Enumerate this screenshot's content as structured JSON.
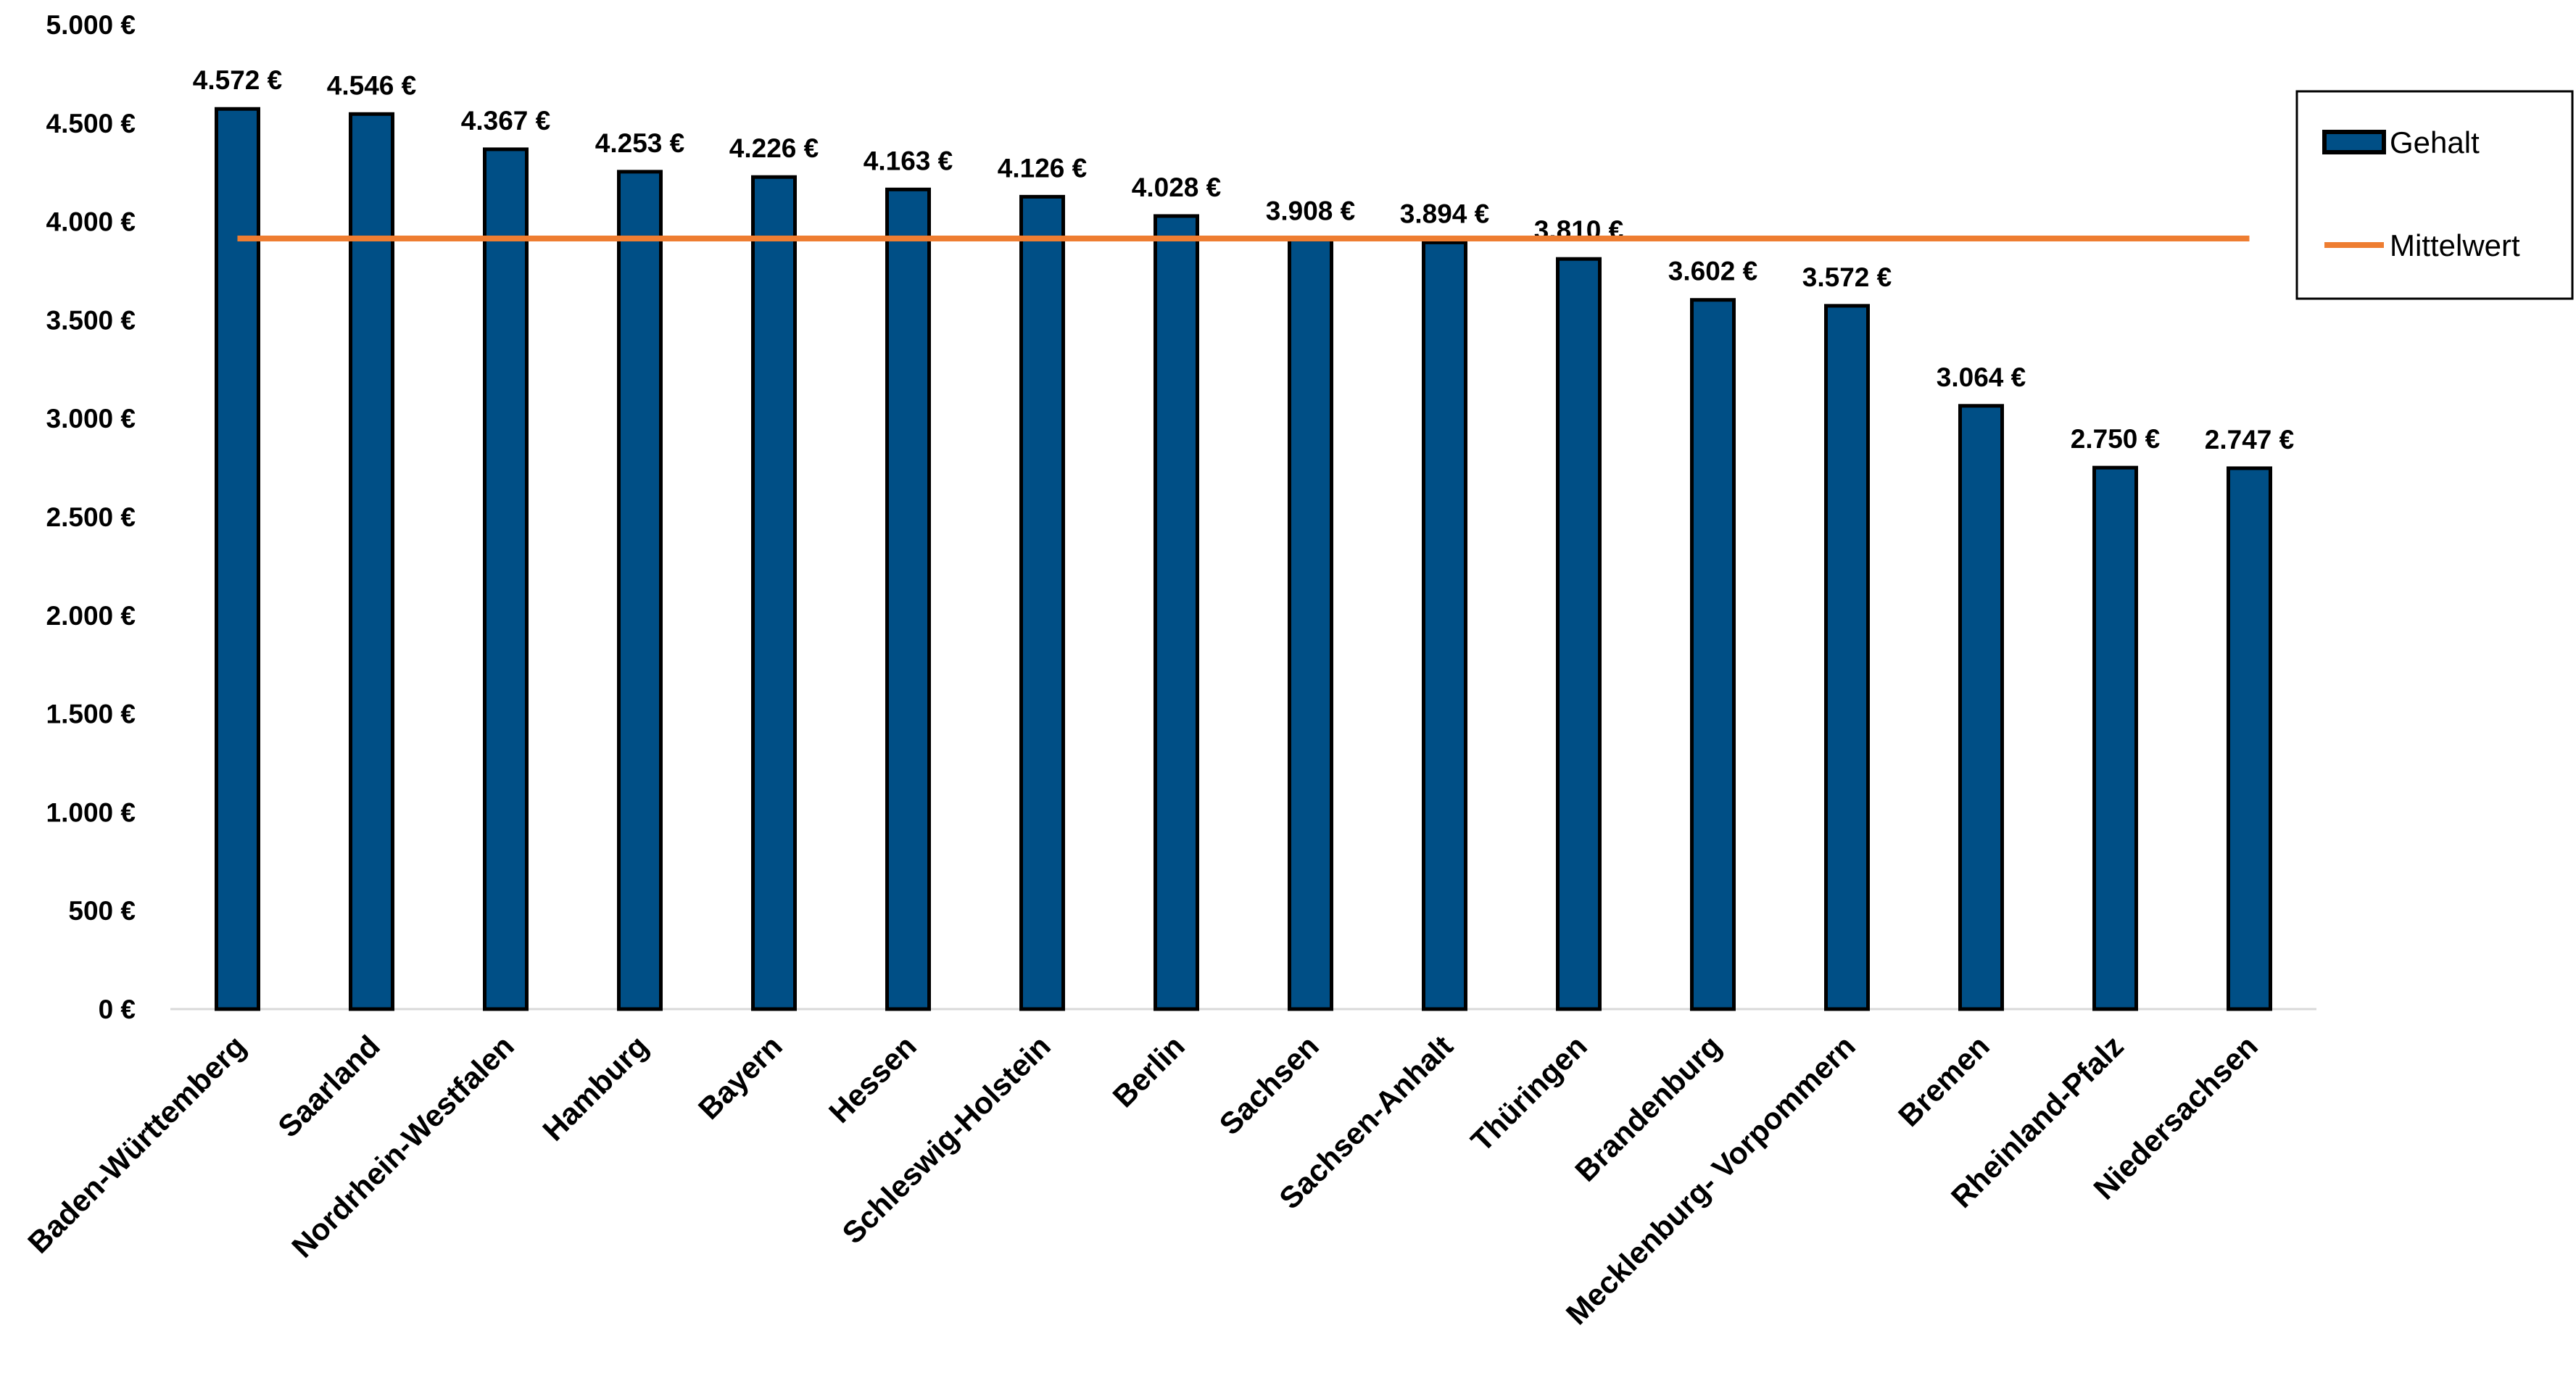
{
  "chart_data": {
    "type": "bar",
    "categories": [
      "Baden-Württemberg",
      "Saarland",
      "Nordrhein-Westfalen",
      "Hamburg",
      "Bayern",
      "Hessen",
      "Schleswig-Holstein",
      "Berlin",
      "Sachsen",
      "Sachsen-Anhalt",
      "Thüringen",
      "Brandenburg",
      "Mecklenburg- Vorpommern",
      "Bremen",
      "Rheinland-Pfalz",
      "Niedersachsen"
    ],
    "series": [
      {
        "name": "Gehalt",
        "type": "bar",
        "values": [
          4572,
          4546,
          4367,
          4253,
          4226,
          4163,
          4126,
          4028,
          3908,
          3894,
          3810,
          3602,
          3572,
          3064,
          2750,
          2747
        ],
        "data_labels": [
          "4.572 €",
          "4.546 €",
          "4.367 €",
          "4.253 €",
          "4.226 €",
          "4.163 €",
          "4.126 €",
          "4.028 €",
          "3.908 €",
          "3.894 €",
          "3.810 €",
          "3.602 €",
          "3.572 €",
          "3.064 €",
          "2.750 €",
          "2.747 €"
        ],
        "color": "#004F86",
        "border_color": "#000000"
      },
      {
        "name": "Mittelwert",
        "type": "line",
        "value": 3914,
        "color": "#EE7D31"
      }
    ],
    "title": "",
    "xlabel": "",
    "ylabel": "",
    "ylim": [
      0,
      5000
    ],
    "yticks": [
      0,
      500,
      1000,
      1500,
      2000,
      2500,
      3000,
      3500,
      4000,
      4500,
      5000
    ],
    "ytick_labels": [
      "0 €",
      "500 €",
      "1.000 €",
      "1.500 €",
      "2.000 €",
      "2.500 €",
      "3.000 €",
      "3.500 €",
      "4.000 €",
      "4.500 €",
      "5.000 €"
    ],
    "grid": false,
    "legend_position": "right"
  }
}
